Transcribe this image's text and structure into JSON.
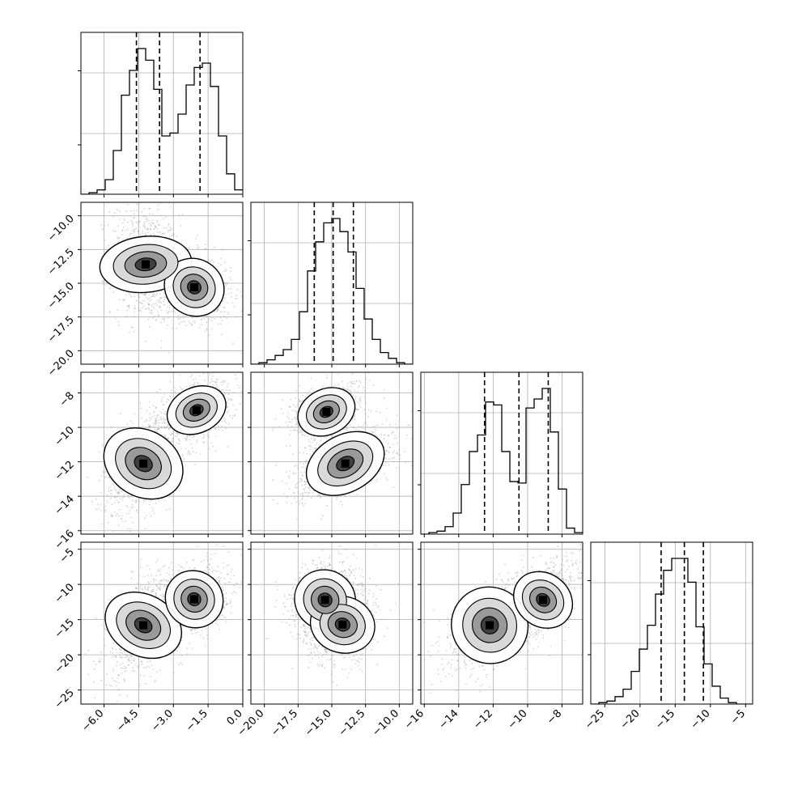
{
  "chart_data": {
    "type": "corner",
    "parameters": [
      {
        "id": "p0",
        "range": [
          -7.0,
          0.0
        ],
        "ticks": [
          -6.0,
          -4.5,
          -3.0,
          -1.5,
          0.0
        ],
        "tick_labels": [
          "−6.0",
          "−4.5",
          "−3.0",
          "−1.5",
          "0.0"
        ],
        "quantiles": [
          -4.6,
          -3.6,
          -1.85
        ]
      },
      {
        "id": "p1",
        "range": [
          -21.0,
          -9.0
        ],
        "ticks": [
          -20.0,
          -17.5,
          -15.0,
          -12.5,
          -10.0
        ],
        "tick_labels": [
          "−20.0",
          "−17.5",
          "−15.0",
          "−12.5",
          "−10.0"
        ],
        "quantiles": [
          -16.3,
          -14.9,
          -13.4
        ]
      },
      {
        "id": "p2",
        "range": [
          -16.2,
          -6.8
        ],
        "ticks": [
          -16,
          -14,
          -12,
          -10,
          -8
        ],
        "tick_labels": [
          "−16",
          "−14",
          "−12",
          "−10",
          "−8"
        ],
        "quantiles": [
          -12.5,
          -10.5,
          -8.8
        ]
      },
      {
        "id": "p3",
        "range": [
          -27.0,
          -4.0
        ],
        "ticks": [
          -25,
          -20,
          -15,
          -10,
          -5
        ],
        "tick_labels": [
          "−25",
          "−20",
          "−15",
          "−10",
          "−5"
        ],
        "quantiles": [
          -17.0,
          -13.7,
          -11.0
        ]
      }
    ],
    "histograms": [
      {
        "param": "p0",
        "bin_width": 0.35,
        "bin_start": -7.0,
        "counts": [
          0,
          1,
          3,
          10,
          30,
          68,
          85,
          100,
          92,
          72,
          40,
          42,
          55,
          75,
          87,
          90,
          74,
          40,
          14,
          3
        ]
      },
      {
        "param": "p1",
        "bin_width": 0.6,
        "bin_start": -21.0,
        "counts": [
          0,
          1,
          3,
          6,
          10,
          17,
          36,
          64,
          84,
          97,
          100,
          91,
          77,
          52,
          31,
          17,
          8,
          4,
          1,
          0
        ]
      },
      {
        "param": "p2",
        "bin_width": 0.47,
        "bin_start": -16.2,
        "counts": [
          0,
          1,
          2,
          5,
          14,
          33,
          55,
          66,
          88,
          86,
          55,
          35,
          34,
          84,
          90,
          97,
          68,
          30,
          4,
          1
        ]
      },
      {
        "param": "p3",
        "bin_width": 1.15,
        "bin_start": -27.0,
        "counts": [
          0,
          1,
          2,
          5,
          10,
          22,
          37,
          53,
          74,
          90,
          98,
          98,
          82,
          52,
          27,
          12,
          4,
          1,
          0,
          0
        ]
      }
    ],
    "pairs": [
      {
        "x_param": "p0",
        "y_param": "p1",
        "modes": [
          {
            "center": [
              -4.2,
              -13.6
            ],
            "sigma_x": 0.55,
            "sigma_y": 1.55,
            "rho": -0.1,
            "weight": 1.0
          },
          {
            "center": [
              -2.1,
              -15.3
            ],
            "sigma_x": 0.6,
            "sigma_y": 0.95,
            "rho": -0.2,
            "weight": 1.0
          }
        ]
      },
      {
        "x_param": "p0",
        "y_param": "p2",
        "modes": [
          {
            "center": [
              -4.3,
              -12.1
            ],
            "sigma_x": 0.65,
            "sigma_y": 1.1,
            "rho": 0.45,
            "weight": 1.0
          },
          {
            "center": [
              -2.0,
              -9.0
            ],
            "sigma_x": 0.6,
            "sigma_y": 0.6,
            "rho": 0.35,
            "weight": 1.0
          }
        ]
      },
      {
        "x_param": "p0",
        "y_param": "p3",
        "modes": [
          {
            "center": [
              -4.3,
              -15.8
            ],
            "sigma_x": 0.6,
            "sigma_y": 2.6,
            "rho": 0.45,
            "weight": 1.0
          },
          {
            "center": [
              -2.1,
              -12.1
            ],
            "sigma_x": 0.55,
            "sigma_y": 1.9,
            "rho": 0.25,
            "weight": 1.0
          }
        ]
      },
      {
        "x_param": "p1",
        "y_param": "p2",
        "modes": [
          {
            "center": [
              -15.4,
              -9.1
            ],
            "sigma_x": 1.0,
            "sigma_y": 0.6,
            "rho": 0.35,
            "weight": 1.0
          },
          {
            "center": [
              -14.0,
              -12.1
            ],
            "sigma_x": 1.4,
            "sigma_y": 0.75,
            "rho": 0.6,
            "weight": 1.0
          }
        ]
      },
      {
        "x_param": "p1",
        "y_param": "p3",
        "modes": [
          {
            "center": [
              -15.5,
              -12.2
            ],
            "sigma_x": 1.0,
            "sigma_y": 2.0,
            "rho": 0.15,
            "weight": 1.0
          },
          {
            "center": [
              -14.2,
              -15.7
            ],
            "sigma_x": 0.95,
            "sigma_y": 2.1,
            "rho": 0.1,
            "weight": 0.85
          }
        ]
      },
      {
        "x_param": "p2",
        "y_param": "p3",
        "modes": [
          {
            "center": [
              -12.2,
              -15.8
            ],
            "sigma_x": 1.0,
            "sigma_y": 2.5,
            "rho": 0.55,
            "weight": 0.8
          },
          {
            "center": [
              -9.1,
              -12.2
            ],
            "sigma_x": 0.7,
            "sigma_y": 2.0,
            "rho": 0.6,
            "weight": 1.0
          }
        ]
      }
    ],
    "grid": true,
    "title": "",
    "xlabel": "",
    "ylabel": ""
  }
}
